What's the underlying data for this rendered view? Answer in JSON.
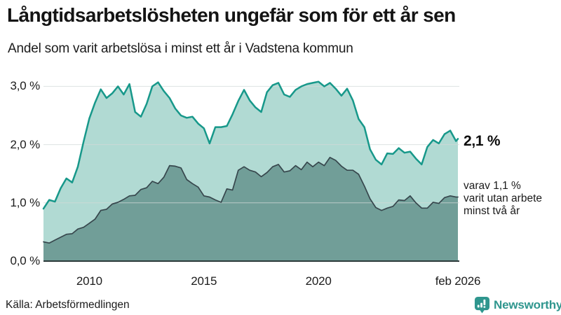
{
  "header": {
    "title": "Långtidsarbetslösheten ungefär som för ett år sen",
    "subtitle": "Andel som varit arbetslösa i minst ett år i Vadstena kommun"
  },
  "chart_data": {
    "type": "area",
    "unit": "%",
    "xlim": [
      2008.0,
      2026.083
    ],
    "ylim": [
      0,
      3.12
    ],
    "grid_color": "#d3d9d8",
    "axis_color": "#2c3a3a",
    "x_ticks": [
      {
        "label": "2010",
        "x": 2010
      },
      {
        "label": "2015",
        "x": 2015
      },
      {
        "label": "2020",
        "x": 2020
      },
      {
        "label": "feb 2026",
        "x": 2026.083
      }
    ],
    "y_ticks": [
      {
        "label": "0,0 %",
        "value": 0
      },
      {
        "label": "1,0 %",
        "value": 1
      },
      {
        "label": "2,0 %",
        "value": 2
      },
      {
        "label": "3,0 %",
        "value": 3
      }
    ],
    "x": [
      2008.0,
      2008.25,
      2008.5,
      2008.75,
      2009.0,
      2009.25,
      2009.5,
      2009.75,
      2010.0,
      2010.25,
      2010.5,
      2010.75,
      2011.0,
      2011.25,
      2011.5,
      2011.75,
      2012.0,
      2012.25,
      2012.5,
      2012.75,
      2013.0,
      2013.25,
      2013.5,
      2013.75,
      2014.0,
      2014.25,
      2014.5,
      2014.75,
      2015.0,
      2015.25,
      2015.5,
      2015.75,
      2016.0,
      2016.25,
      2016.5,
      2016.75,
      2017.0,
      2017.25,
      2017.5,
      2017.75,
      2018.0,
      2018.25,
      2018.5,
      2018.75,
      2019.0,
      2019.25,
      2019.5,
      2019.75,
      2020.0,
      2020.25,
      2020.5,
      2020.75,
      2021.0,
      2021.25,
      2021.5,
      2021.75,
      2022.0,
      2022.25,
      2022.5,
      2022.75,
      2023.0,
      2023.25,
      2023.5,
      2023.75,
      2024.0,
      2024.25,
      2024.5,
      2024.75,
      2025.0,
      2025.25,
      2025.5,
      2025.75,
      2026.0,
      2026.083
    ],
    "series": [
      {
        "name": "Arbetslösa minst ett år",
        "color": "#17988a",
        "fill": "#b1dad3",
        "values": [
          0.9,
          1.05,
          1.02,
          1.25,
          1.42,
          1.35,
          1.62,
          2.05,
          2.45,
          2.72,
          2.95,
          2.8,
          2.88,
          3.0,
          2.86,
          3.04,
          2.56,
          2.48,
          2.7,
          3.0,
          3.07,
          2.92,
          2.8,
          2.62,
          2.5,
          2.46,
          2.48,
          2.36,
          2.28,
          2.02,
          2.3,
          2.3,
          2.32,
          2.52,
          2.75,
          2.94,
          2.76,
          2.64,
          2.56,
          2.9,
          3.02,
          3.06,
          2.86,
          2.82,
          2.94,
          3.0,
          3.04,
          3.06,
          3.08,
          3.0,
          3.06,
          2.96,
          2.84,
          2.96,
          2.76,
          2.44,
          2.3,
          1.92,
          1.74,
          1.66,
          1.85,
          1.84,
          1.94,
          1.86,
          1.88,
          1.76,
          1.66,
          1.96,
          2.08,
          2.02,
          2.18,
          2.24,
          2.06,
          2.1
        ]
      },
      {
        "name": "Arbetslösa minst två år",
        "color": "#37474d",
        "fill": "#719e98",
        "values": [
          0.33,
          0.31,
          0.36,
          0.41,
          0.46,
          0.47,
          0.55,
          0.58,
          0.65,
          0.72,
          0.87,
          0.89,
          0.98,
          1.01,
          1.06,
          1.12,
          1.13,
          1.23,
          1.26,
          1.37,
          1.33,
          1.44,
          1.64,
          1.63,
          1.6,
          1.4,
          1.33,
          1.27,
          1.12,
          1.1,
          1.05,
          1.01,
          1.24,
          1.22,
          1.56,
          1.62,
          1.56,
          1.53,
          1.45,
          1.52,
          1.62,
          1.66,
          1.53,
          1.55,
          1.64,
          1.57,
          1.7,
          1.62,
          1.7,
          1.64,
          1.78,
          1.73,
          1.63,
          1.56,
          1.56,
          1.49,
          1.29,
          1.07,
          0.92,
          0.87,
          0.91,
          0.94,
          1.05,
          1.04,
          1.12,
          1.0,
          0.91,
          0.91,
          1.01,
          0.99,
          1.09,
          1.12,
          1.1,
          1.1
        ]
      }
    ],
    "annotations": {
      "end_value_label": "2,1 %",
      "sub_label_lines": [
        "varav 1,1 %",
        "varit utan arbete",
        "minst två år"
      ]
    }
  },
  "footer": {
    "source": "Källa: Arbetsförmedlingen",
    "brand": "Newsworthy",
    "brand_color": "#2f968e"
  }
}
